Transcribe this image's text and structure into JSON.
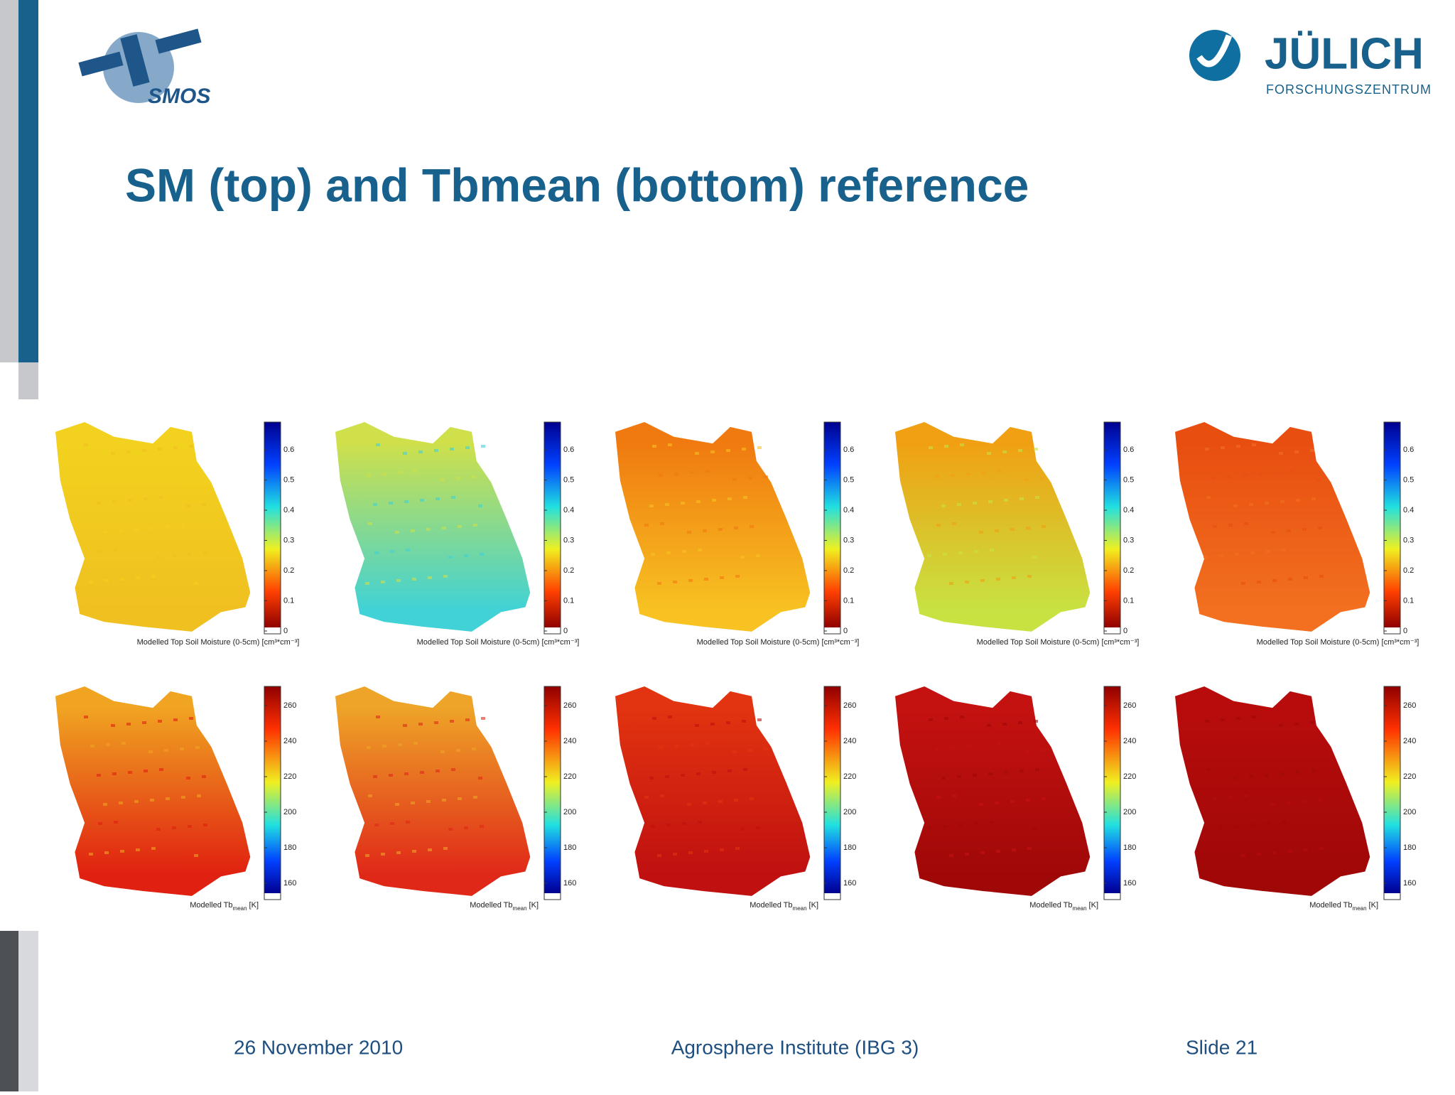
{
  "header": {
    "left_logo": "SMOS",
    "right_logo": {
      "name": "JÜLICH",
      "subtitle": "FORSCHUNGSZENTRUM"
    }
  },
  "title": "SM (top) and Tbmean (bottom) reference",
  "figure": {
    "rows": [
      {
        "label": "Modelled Top Soil Moisture (0-5cm) [cm³*cm⁻³]",
        "colorbar_ticks": [
          "0.6",
          "0.5",
          "0.4",
          "0.3",
          "0.2",
          "0.1",
          "0"
        ]
      },
      {
        "label": {
          "text": "Modelled Tb",
          "sub": "mean",
          "unit": "[K]"
        },
        "colorbar_ticks": [
          "260",
          "240",
          "220",
          "200",
          "180",
          "160"
        ]
      }
    ]
  },
  "footer": {
    "date": "26 November 2010",
    "institute": "Agrosphere Institute (IBG 3)",
    "slide": "Slide 21"
  }
}
